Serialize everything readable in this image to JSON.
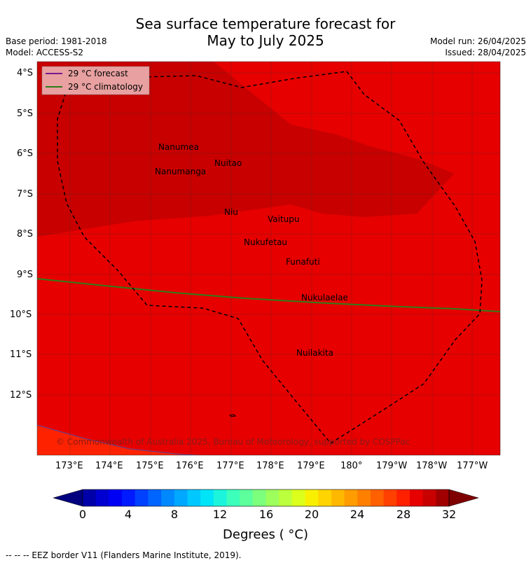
{
  "header": {
    "title_line1": "Sea surface temperature forecast for",
    "title_line2": "May to July 2025",
    "base_period": "Base period: 1981-2018",
    "model": "Model: ACCESS-S2",
    "model_run": "Model run: 26/04/2025",
    "issued": "Issued: 28/04/2025"
  },
  "map": {
    "lat_labels": [
      "4°S",
      "5°S",
      "6°S",
      "7°S",
      "8°S",
      "9°S",
      "10°S",
      "11°S",
      "12°S"
    ],
    "lon_labels": [
      "173°E",
      "174°E",
      "175°E",
      "176°E",
      "177°E",
      "178°E",
      "179°E",
      "180°",
      "179°W",
      "178°W",
      "177°W"
    ],
    "legend": [
      {
        "label": "29 °C  forecast",
        "color": "#7a1a8c"
      },
      {
        "label": "29 °C  climatology",
        "color": "#2e7d1a"
      }
    ],
    "places": [
      "Nanumea",
      "Nuitao",
      "Nanumanga",
      "Niu",
      "Vaitupu",
      "Nukufetau",
      "Funafuti",
      "Nukulaelae",
      "Nuilakita"
    ],
    "copyright": "© Commonwealth of Australia 2025, Bureau of Meteorology, supported by COSPPac",
    "colors": {
      "background_sst": "#e60000",
      "warm_region": "#c80000",
      "cool_corner": "#ff2200",
      "eez_border": "#000000"
    }
  },
  "colorbar": {
    "tick_labels": [
      "0",
      "4",
      "8",
      "12",
      "16",
      "20",
      "24",
      "28",
      "32"
    ],
    "title": "Degrees ( °C)",
    "colors": [
      "#00007f",
      "#0000a8",
      "#0000d0",
      "#0000f5",
      "#001aff",
      "#0040ff",
      "#0064ff",
      "#0088ff",
      "#00a8ff",
      "#00c8ff",
      "#00e4f8",
      "#1cf5dc",
      "#3cffbc",
      "#5cff9c",
      "#7cff7c",
      "#9cff5c",
      "#bcff3c",
      "#dcff1c",
      "#f8f000",
      "#ffd400",
      "#ffb800",
      "#ff9c00",
      "#ff8000",
      "#ff6000",
      "#ff4000",
      "#ff2000",
      "#e60000",
      "#c80000",
      "#a00000",
      "#7f0000"
    ]
  },
  "footnote": "--  --  -- EEZ border V11 (Flanders Marine Institute, 2019)."
}
